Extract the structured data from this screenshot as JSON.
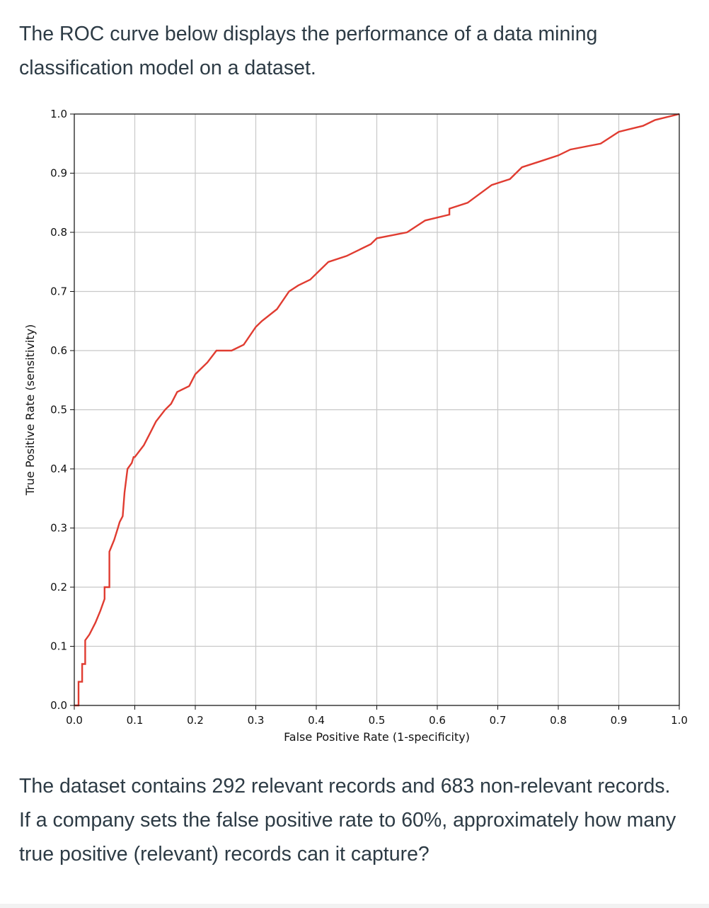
{
  "intro_text": "The ROC curve below displays the performance of a data mining classification model on a dataset.",
  "question_text": "The dataset contains 292 relevant records and 683 non-relevant records. If a company sets the false positive rate to 60%, approximately how many true positive (relevant) records can it capture?",
  "chart_data": {
    "type": "line",
    "title": "",
    "xlabel": "False Positive Rate (1-specificity)",
    "ylabel": "True Positive Rate (sensitivity)",
    "xlim": [
      0.0,
      1.0
    ],
    "ylim": [
      0.0,
      1.0
    ],
    "xticks": [
      "0.0",
      "0.1",
      "0.2",
      "0.3",
      "0.4",
      "0.5",
      "0.6",
      "0.7",
      "0.8",
      "0.9",
      "1.0"
    ],
    "yticks": [
      "0.0",
      "0.1",
      "0.2",
      "0.3",
      "0.4",
      "0.5",
      "0.6",
      "0.7",
      "0.8",
      "0.9",
      "1.0"
    ],
    "grid": true,
    "line_color": "#e03c31",
    "series": [
      {
        "x": [
          0.0,
          0.005,
          0.007,
          0.007,
          0.013,
          0.013,
          0.018,
          0.018,
          0.025,
          0.035,
          0.043,
          0.05,
          0.05,
          0.058,
          0.058,
          0.062,
          0.066,
          0.072,
          0.075,
          0.08,
          0.083,
          0.088,
          0.095,
          0.098,
          0.1,
          0.115,
          0.125,
          0.135,
          0.15,
          0.16,
          0.17,
          0.19,
          0.2,
          0.22,
          0.235,
          0.26,
          0.28,
          0.3,
          0.31,
          0.335,
          0.355,
          0.37,
          0.39,
          0.42,
          0.45,
          0.49,
          0.5,
          0.55,
          0.58,
          0.62,
          0.62,
          0.65,
          0.69,
          0.72,
          0.74,
          0.77,
          0.8,
          0.82,
          0.87,
          0.9,
          0.94,
          0.96,
          1.0
        ],
        "y": [
          0.0,
          0.0,
          0.0,
          0.04,
          0.04,
          0.07,
          0.07,
          0.11,
          0.12,
          0.14,
          0.16,
          0.18,
          0.2,
          0.2,
          0.26,
          0.27,
          0.28,
          0.3,
          0.31,
          0.32,
          0.36,
          0.4,
          0.41,
          0.42,
          0.42,
          0.44,
          0.46,
          0.48,
          0.5,
          0.51,
          0.53,
          0.54,
          0.56,
          0.58,
          0.6,
          0.6,
          0.61,
          0.64,
          0.65,
          0.67,
          0.7,
          0.71,
          0.72,
          0.75,
          0.76,
          0.78,
          0.79,
          0.8,
          0.82,
          0.83,
          0.84,
          0.85,
          0.88,
          0.89,
          0.91,
          0.92,
          0.93,
          0.94,
          0.95,
          0.97,
          0.98,
          0.99,
          1.0
        ]
      }
    ]
  }
}
